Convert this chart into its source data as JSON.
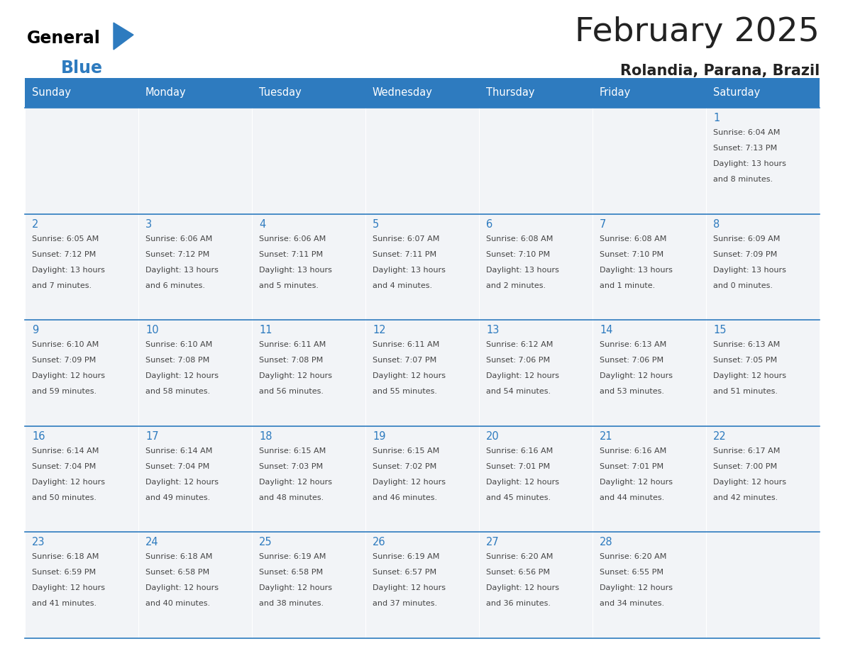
{
  "title": "February 2025",
  "subtitle": "Rolandia, Parana, Brazil",
  "header_bg_color": "#2E7BBF",
  "header_text_color": "#FFFFFF",
  "cell_bg_even": "#F0F4F8",
  "cell_bg_odd": "#F0F4F8",
  "separator_color": "#2E7BBF",
  "day_names": [
    "Sunday",
    "Monday",
    "Tuesday",
    "Wednesday",
    "Thursday",
    "Friday",
    "Saturday"
  ],
  "days_data": [
    {
      "day": 1,
      "col": 6,
      "row": 0,
      "sunrise": "6:04 AM",
      "sunset": "7:13 PM",
      "daylight": "13 hours",
      "daylight2": "and 8 minutes."
    },
    {
      "day": 2,
      "col": 0,
      "row": 1,
      "sunrise": "6:05 AM",
      "sunset": "7:12 PM",
      "daylight": "13 hours",
      "daylight2": "and 7 minutes."
    },
    {
      "day": 3,
      "col": 1,
      "row": 1,
      "sunrise": "6:06 AM",
      "sunset": "7:12 PM",
      "daylight": "13 hours",
      "daylight2": "and 6 minutes."
    },
    {
      "day": 4,
      "col": 2,
      "row": 1,
      "sunrise": "6:06 AM",
      "sunset": "7:11 PM",
      "daylight": "13 hours",
      "daylight2": "and 5 minutes."
    },
    {
      "day": 5,
      "col": 3,
      "row": 1,
      "sunrise": "6:07 AM",
      "sunset": "7:11 PM",
      "daylight": "13 hours",
      "daylight2": "and 4 minutes."
    },
    {
      "day": 6,
      "col": 4,
      "row": 1,
      "sunrise": "6:08 AM",
      "sunset": "7:10 PM",
      "daylight": "13 hours",
      "daylight2": "and 2 minutes."
    },
    {
      "day": 7,
      "col": 5,
      "row": 1,
      "sunrise": "6:08 AM",
      "sunset": "7:10 PM",
      "daylight": "13 hours",
      "daylight2": "and 1 minute."
    },
    {
      "day": 8,
      "col": 6,
      "row": 1,
      "sunrise": "6:09 AM",
      "sunset": "7:09 PM",
      "daylight": "13 hours",
      "daylight2": "and 0 minutes."
    },
    {
      "day": 9,
      "col": 0,
      "row": 2,
      "sunrise": "6:10 AM",
      "sunset": "7:09 PM",
      "daylight": "12 hours",
      "daylight2": "and 59 minutes."
    },
    {
      "day": 10,
      "col": 1,
      "row": 2,
      "sunrise": "6:10 AM",
      "sunset": "7:08 PM",
      "daylight": "12 hours",
      "daylight2": "and 58 minutes."
    },
    {
      "day": 11,
      "col": 2,
      "row": 2,
      "sunrise": "6:11 AM",
      "sunset": "7:08 PM",
      "daylight": "12 hours",
      "daylight2": "and 56 minutes."
    },
    {
      "day": 12,
      "col": 3,
      "row": 2,
      "sunrise": "6:11 AM",
      "sunset": "7:07 PM",
      "daylight": "12 hours",
      "daylight2": "and 55 minutes."
    },
    {
      "day": 13,
      "col": 4,
      "row": 2,
      "sunrise": "6:12 AM",
      "sunset": "7:06 PM",
      "daylight": "12 hours",
      "daylight2": "and 54 minutes."
    },
    {
      "day": 14,
      "col": 5,
      "row": 2,
      "sunrise": "6:13 AM",
      "sunset": "7:06 PM",
      "daylight": "12 hours",
      "daylight2": "and 53 minutes."
    },
    {
      "day": 15,
      "col": 6,
      "row": 2,
      "sunrise": "6:13 AM",
      "sunset": "7:05 PM",
      "daylight": "12 hours",
      "daylight2": "and 51 minutes."
    },
    {
      "day": 16,
      "col": 0,
      "row": 3,
      "sunrise": "6:14 AM",
      "sunset": "7:04 PM",
      "daylight": "12 hours",
      "daylight2": "and 50 minutes."
    },
    {
      "day": 17,
      "col": 1,
      "row": 3,
      "sunrise": "6:14 AM",
      "sunset": "7:04 PM",
      "daylight": "12 hours",
      "daylight2": "and 49 minutes."
    },
    {
      "day": 18,
      "col": 2,
      "row": 3,
      "sunrise": "6:15 AM",
      "sunset": "7:03 PM",
      "daylight": "12 hours",
      "daylight2": "and 48 minutes."
    },
    {
      "day": 19,
      "col": 3,
      "row": 3,
      "sunrise": "6:15 AM",
      "sunset": "7:02 PM",
      "daylight": "12 hours",
      "daylight2": "and 46 minutes."
    },
    {
      "day": 20,
      "col": 4,
      "row": 3,
      "sunrise": "6:16 AM",
      "sunset": "7:01 PM",
      "daylight": "12 hours",
      "daylight2": "and 45 minutes."
    },
    {
      "day": 21,
      "col": 5,
      "row": 3,
      "sunrise": "6:16 AM",
      "sunset": "7:01 PM",
      "daylight": "12 hours",
      "daylight2": "and 44 minutes."
    },
    {
      "day": 22,
      "col": 6,
      "row": 3,
      "sunrise": "6:17 AM",
      "sunset": "7:00 PM",
      "daylight": "12 hours",
      "daylight2": "and 42 minutes."
    },
    {
      "day": 23,
      "col": 0,
      "row": 4,
      "sunrise": "6:18 AM",
      "sunset": "6:59 PM",
      "daylight": "12 hours",
      "daylight2": "and 41 minutes."
    },
    {
      "day": 24,
      "col": 1,
      "row": 4,
      "sunrise": "6:18 AM",
      "sunset": "6:58 PM",
      "daylight": "12 hours",
      "daylight2": "and 40 minutes."
    },
    {
      "day": 25,
      "col": 2,
      "row": 4,
      "sunrise": "6:19 AM",
      "sunset": "6:58 PM",
      "daylight": "12 hours",
      "daylight2": "and 38 minutes."
    },
    {
      "day": 26,
      "col": 3,
      "row": 4,
      "sunrise": "6:19 AM",
      "sunset": "6:57 PM",
      "daylight": "12 hours",
      "daylight2": "and 37 minutes."
    },
    {
      "day": 27,
      "col": 4,
      "row": 4,
      "sunrise": "6:20 AM",
      "sunset": "6:56 PM",
      "daylight": "12 hours",
      "daylight2": "and 36 minutes."
    },
    {
      "day": 28,
      "col": 5,
      "row": 4,
      "sunrise": "6:20 AM",
      "sunset": "6:55 PM",
      "daylight": "12 hours",
      "daylight2": "and 34 minutes."
    }
  ],
  "num_rows": 5,
  "num_cols": 7,
  "logo_text_general": "General",
  "logo_text_blue": "Blue",
  "logo_triangle_color": "#2E7BBF",
  "text_color_dark": "#444444",
  "text_color_blue": "#2E7BBF",
  "text_color_black": "#222222"
}
